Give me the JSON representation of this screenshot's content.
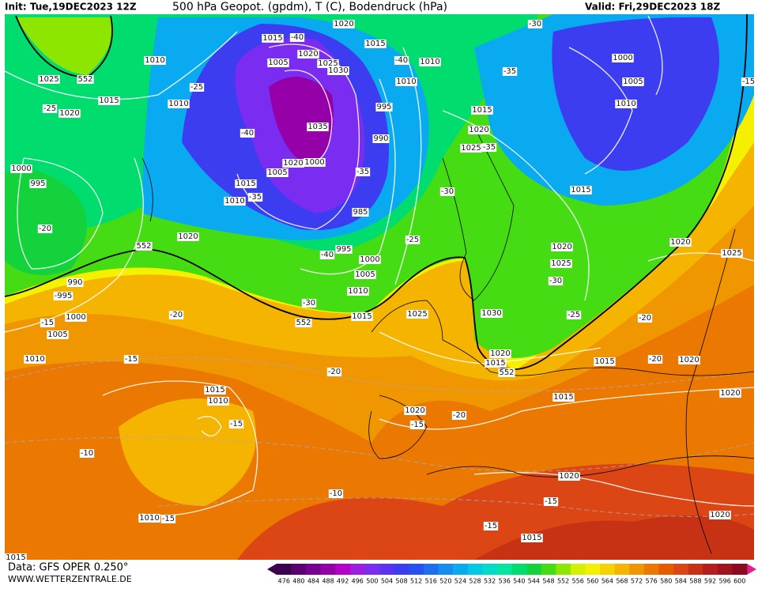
{
  "header": {
    "init": "Init: Tue,19DEC2023 12Z",
    "title": "500 hPa Geopot. (gpdm), T (C), Bodendruck (hPa)",
    "valid": "Valid: Fri,29DEC2023 18Z"
  },
  "footer": {
    "data": "Data: GFS OPER 0.250°",
    "site": "WWW.WETTERZENTRALE.DE"
  },
  "legend": {
    "levels": [
      476,
      480,
      484,
      488,
      492,
      496,
      500,
      504,
      508,
      512,
      516,
      520,
      524,
      528,
      532,
      536,
      540,
      544,
      548,
      552,
      556,
      560,
      564,
      568,
      572,
      576,
      580,
      584,
      588,
      592,
      596,
      600
    ],
    "colors": [
      "#3c0050",
      "#5a0070",
      "#780090",
      "#9600a8",
      "#b400c8",
      "#9c1ee0",
      "#7a2cf0",
      "#5a32f0",
      "#3c3cf0",
      "#2850f0",
      "#1e6ef0",
      "#148cf0",
      "#0aaaf0",
      "#00c8e6",
      "#00dcc8",
      "#00e6a0",
      "#00dc6e",
      "#14d23c",
      "#46dc14",
      "#8ce600",
      "#d2f000",
      "#f5f000",
      "#f5d200",
      "#f5b400",
      "#f09600",
      "#eb7800",
      "#e65a00",
      "#dc4614",
      "#c83214",
      "#b41e1e",
      "#a0141e",
      "#8c0a1e"
    ]
  },
  "map": {
    "pressure_labels": [
      "1015",
      "1020",
      "1015",
      "1020",
      "1005",
      "1025",
      "1030",
      "1010",
      "1010",
      "1000",
      "1005",
      "1010",
      "1025",
      "1015",
      "1020",
      "1010",
      "1010",
      "995",
      "1015",
      "990",
      "1020",
      "1025",
      "1035",
      "1020",
      "1000",
      "1005",
      "1015",
      "1010",
      "985",
      "1000",
      "995",
      "1015",
      "1020",
      "1020",
      "1025",
      "1020",
      "1025",
      "995",
      "1000",
      "1005",
      "1010",
      "990",
      "1000",
      "1005",
      "1010",
      "1015",
      "1025",
      "1030",
      "1020",
      "1015",
      "1015",
      "1020",
      "1020",
      "1015",
      "1010",
      "1015",
      "1020",
      "1020",
      "1010",
      "1020",
      "1015",
      "1015"
    ],
    "temperature_labels": [
      "-40",
      "-40",
      "-35",
      "-25",
      "-25",
      "-40",
      "-35",
      "-35",
      "-35",
      "-30",
      "-20",
      "-25",
      "-40",
      "-30",
      "-30",
      "-995",
      "-20",
      "-15",
      "-25",
      "-20",
      "-15",
      "-20",
      "-20",
      "-15",
      "-15",
      "-20",
      "-10",
      "-10",
      "-15",
      "-15",
      "-15",
      "-30",
      "-15"
    ],
    "height_labels": [
      "552",
      "552",
      "552",
      "552"
    ]
  }
}
